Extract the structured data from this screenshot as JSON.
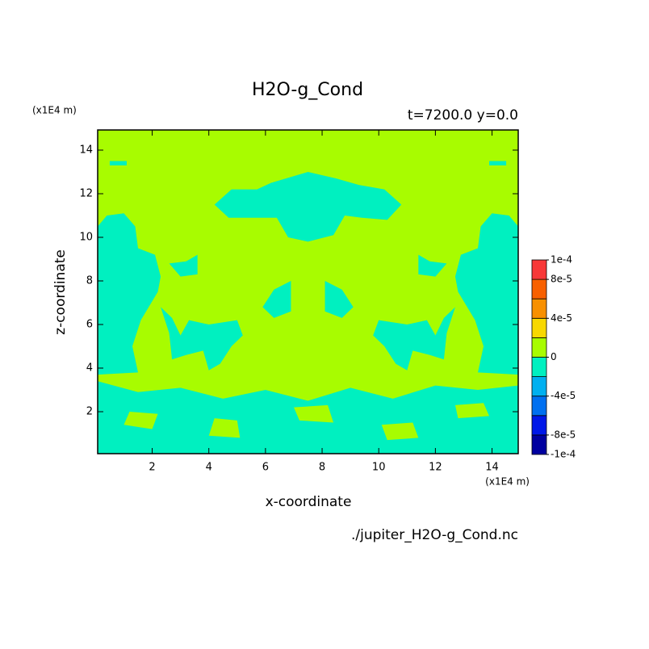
{
  "chart_data": {
    "type": "contour",
    "title": "H2O-g_Cond",
    "subtitle": "t=7200.0 y=0.0",
    "xlabel": "x-coordinate",
    "ylabel": "z-coordinate",
    "x_unit": "(x1E4 m)",
    "y_unit": "(x1E4 m)",
    "source": "./jupiter_H2O-g_Cond.nc",
    "xlim": [
      0.075,
      14.925
    ],
    "ylim": [
      0.075,
      14.925
    ],
    "xticks": [
      2,
      4,
      6,
      8,
      10,
      12,
      14
    ],
    "yticks": [
      2,
      4,
      6,
      8,
      10,
      12,
      14
    ],
    "background_value": 1e-05,
    "levels": [
      -0.0001,
      -8e-05,
      -6e-05,
      -4e-05,
      -2e-05,
      0,
      2e-05,
      4e-05,
      6e-05,
      8e-05,
      0.0001
    ],
    "colors": [
      "#0000a0",
      "#0018e8",
      "#0070f0",
      "#00b0f0",
      "#00f0c0",
      "#a8fc00",
      "#f8d800",
      "#f89000",
      "#f86000",
      "#f83838"
    ],
    "cbar_ticks": [
      {
        "value": 0.0001,
        "label": "1e-4"
      },
      {
        "value": 8e-05,
        "label": "8e-5"
      },
      {
        "value": 4e-05,
        "label": "4e-5"
      },
      {
        "value": 0,
        "label": "0"
      },
      {
        "value": -4e-05,
        "label": "-4e-5"
      },
      {
        "value": -8e-05,
        "label": "-8e-5"
      },
      {
        "value": -0.0001,
        "label": "-1e-4"
      }
    ],
    "regions": [
      {
        "value": -1e-05,
        "x": [
          0.075,
          1.5,
          1.3,
          1.6,
          2.2,
          2.3,
          2.1,
          1.5,
          1.4,
          1.0,
          0.4,
          0.075
        ],
        "z": [
          3.7,
          3.8,
          5.0,
          6.2,
          7.5,
          8.2,
          9.2,
          9.5,
          10.5,
          11.1,
          11.0,
          10.5
        ]
      },
      {
        "value": -1e-05,
        "x": [
          14.925,
          13.5,
          13.7,
          13.4,
          12.8,
          12.7,
          12.9,
          13.5,
          13.6,
          14.0,
          14.6,
          14.925
        ],
        "z": [
          3.7,
          3.8,
          5.0,
          6.2,
          7.5,
          8.2,
          9.2,
          9.5,
          10.5,
          11.1,
          11.0,
          10.5
        ]
      },
      {
        "value": -1e-05,
        "x": [
          4.2,
          4.8,
          5.7,
          6.2,
          7.5,
          8.5,
          9.3,
          10.2,
          10.8,
          10.3,
          9.4,
          8.8,
          8.4,
          7.5,
          6.8,
          6.4,
          5.5,
          4.7
        ],
        "z": [
          11.5,
          12.2,
          12.2,
          12.5,
          13.0,
          12.7,
          12.4,
          12.2,
          11.5,
          10.8,
          10.9,
          11.0,
          10.1,
          9.8,
          10.0,
          10.9,
          10.9,
          10.9
        ]
      },
      {
        "value": -1e-05,
        "x": [
          2.3,
          2.7,
          3.0,
          3.3,
          4.0,
          5.0,
          5.2,
          4.8,
          4.4,
          4.0,
          3.8,
          3.2,
          2.7,
          2.6
        ],
        "z": [
          6.8,
          6.3,
          5.5,
          6.2,
          6.0,
          6.2,
          5.5,
          5.0,
          4.2,
          3.9,
          4.8,
          4.6,
          4.4,
          5.6
        ]
      },
      {
        "value": -1e-05,
        "x": [
          12.7,
          12.3,
          12.0,
          11.7,
          11.0,
          10.0,
          9.8,
          10.2,
          10.6,
          11.0,
          11.2,
          11.8,
          12.3,
          12.4
        ],
        "z": [
          6.8,
          6.3,
          5.5,
          6.2,
          6.0,
          6.2,
          5.5,
          5.0,
          4.2,
          3.9,
          4.8,
          4.6,
          4.4,
          5.6
        ]
      },
      {
        "value": -1e-05,
        "x": [
          5.9,
          6.3,
          6.9,
          6.9,
          6.3
        ],
        "z": [
          6.8,
          7.6,
          8.0,
          6.6,
          6.3
        ]
      },
      {
        "value": -1e-05,
        "x": [
          9.1,
          8.7,
          8.1,
          8.1,
          8.7
        ],
        "z": [
          6.8,
          7.6,
          8.0,
          6.6,
          6.3
        ]
      },
      {
        "value": -1e-05,
        "x": [
          2.6,
          3.2,
          3.6,
          3.6,
          3.0
        ],
        "z": [
          8.8,
          8.9,
          9.2,
          8.3,
          8.2
        ]
      },
      {
        "value": -1e-05,
        "x": [
          12.4,
          11.8,
          11.4,
          11.4,
          12.0
        ],
        "z": [
          8.8,
          8.9,
          9.2,
          8.3,
          8.2
        ]
      },
      {
        "value": -1e-05,
        "x": [
          0.5,
          1.1,
          1.1,
          0.5
        ],
        "z": [
          13.3,
          13.3,
          13.5,
          13.5
        ]
      },
      {
        "value": -1e-05,
        "x": [
          13.9,
          14.5,
          14.5,
          13.9
        ],
        "z": [
          13.3,
          13.3,
          13.5,
          13.5
        ]
      },
      {
        "value": -1e-05,
        "x": [
          0.075,
          14.925,
          14.925,
          13.5,
          12.0,
          10.5,
          9.0,
          7.5,
          6.0,
          4.5,
          3.0,
          1.5,
          0.075
        ],
        "z": [
          0.075,
          0.075,
          3.2,
          3.0,
          3.2,
          2.6,
          3.1,
          2.5,
          3.0,
          2.6,
          3.1,
          2.9,
          3.4
        ]
      },
      {
        "value": 1e-05,
        "x": [
          1.0,
          2.0,
          2.2,
          1.2
        ],
        "z": [
          1.4,
          1.2,
          1.9,
          2.0
        ]
      },
      {
        "value": 1e-05,
        "x": [
          4.0,
          5.1,
          5.0,
          4.2
        ],
        "z": [
          0.9,
          0.8,
          1.6,
          1.7
        ]
      },
      {
        "value": 1e-05,
        "x": [
          7.2,
          8.4,
          8.2,
          7.0
        ],
        "z": [
          1.6,
          1.5,
          2.3,
          2.2
        ]
      },
      {
        "value": 1e-05,
        "x": [
          10.3,
          11.4,
          11.2,
          10.1
        ],
        "z": [
          0.7,
          0.8,
          1.5,
          1.4
        ]
      },
      {
        "value": 1e-05,
        "x": [
          12.8,
          13.9,
          13.7,
          12.7
        ],
        "z": [
          1.7,
          1.8,
          2.4,
          2.3
        ]
      }
    ]
  }
}
